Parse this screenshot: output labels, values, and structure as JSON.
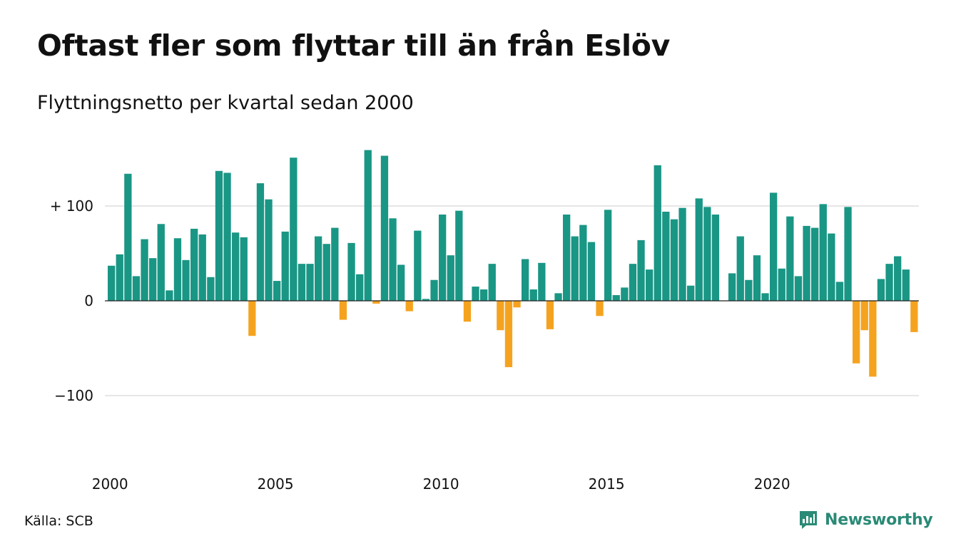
{
  "header": {
    "title": "Oftast fler som flyttar till än från Eslöv",
    "subtitle": "Flyttningsnetto per kvartal sedan 2000"
  },
  "footer": {
    "source": "Källa: SCB",
    "brand": "Newsworthy"
  },
  "colors": {
    "positive": "#1a9685",
    "negative": "#f5a31f",
    "grid": "#dddddd",
    "brand": "#2a8a76"
  },
  "chart_data": {
    "type": "bar",
    "title": "Oftast fler som flyttar till än från Eslöv",
    "subtitle": "Flyttningsnetto per kvartal sedan 2000",
    "xlabel": "",
    "ylabel": "",
    "ylim": [
      -170,
      165
    ],
    "yticks": [
      {
        "value": 100,
        "label": "+ 100"
      },
      {
        "value": 0,
        "label": "0"
      },
      {
        "value": -100,
        "label": "−100"
      }
    ],
    "xticks": [
      "2000",
      "2005",
      "2010",
      "2015",
      "2020"
    ],
    "grid": true,
    "series": [
      {
        "categories": [
          "2000Q1",
          "2000Q2",
          "2000Q3",
          "2000Q4",
          "2001Q1",
          "2001Q2",
          "2001Q3",
          "2001Q4",
          "2002Q1",
          "2002Q2",
          "2002Q3",
          "2002Q4",
          "2003Q1",
          "2003Q2",
          "2003Q3",
          "2003Q4",
          "2004Q1",
          "2004Q2",
          "2004Q3",
          "2004Q4",
          "2005Q1",
          "2005Q2",
          "2005Q3",
          "2005Q4",
          "2006Q1",
          "2006Q2",
          "2006Q3",
          "2006Q4",
          "2007Q1",
          "2007Q2",
          "2007Q3",
          "2007Q4",
          "2008Q1",
          "2008Q2",
          "2008Q3",
          "2008Q4",
          "2009Q1",
          "2009Q2",
          "2009Q3",
          "2009Q4",
          "2010Q1",
          "2010Q2",
          "2010Q3",
          "2010Q4",
          "2011Q1",
          "2011Q2",
          "2011Q3",
          "2011Q4",
          "2012Q1",
          "2012Q2",
          "2012Q3",
          "2012Q4",
          "2013Q1",
          "2013Q2",
          "2013Q3",
          "2013Q4",
          "2014Q1",
          "2014Q2",
          "2014Q3",
          "2014Q4",
          "2015Q1",
          "2015Q2",
          "2015Q3",
          "2015Q4",
          "2016Q1",
          "2016Q2",
          "2016Q3",
          "2016Q4",
          "2017Q1",
          "2017Q2",
          "2017Q3",
          "2017Q4",
          "2018Q1",
          "2018Q2",
          "2018Q3",
          "2018Q4",
          "2019Q1",
          "2019Q2",
          "2019Q3",
          "2019Q4",
          "2020Q1",
          "2020Q2",
          "2020Q3",
          "2020Q4",
          "2021Q1",
          "2021Q2",
          "2021Q3",
          "2021Q4",
          "2022Q1",
          "2022Q2",
          "2022Q3",
          "2022Q4",
          "2023Q1",
          "2023Q2",
          "2023Q3",
          "2023Q4",
          "2024Q1",
          "2024Q2",
          "2024Q3"
        ],
        "values": [
          37,
          49,
          134,
          26,
          65,
          45,
          81,
          11,
          66,
          43,
          76,
          70,
          25,
          137,
          135,
          72,
          67,
          -37,
          124,
          107,
          21,
          73,
          151,
          39,
          39,
          68,
          60,
          77,
          -20,
          61,
          28,
          159,
          -3,
          153,
          87,
          38,
          -11,
          74,
          2,
          22,
          91,
          48,
          95,
          -22,
          15,
          12,
          39,
          -31,
          -70,
          -7,
          44,
          12,
          40,
          -30,
          8,
          91,
          68,
          80,
          62,
          -16,
          96,
          6,
          14,
          39,
          64,
          33,
          143,
          94,
          86,
          98,
          16,
          108,
          99,
          91,
          0,
          29,
          68,
          22,
          48,
          8,
          114,
          34,
          89,
          26,
          79,
          77,
          102,
          71,
          20,
          99,
          -66,
          -31,
          -80,
          23,
          39,
          47,
          33,
          -33,
          0
        ]
      }
    ]
  }
}
